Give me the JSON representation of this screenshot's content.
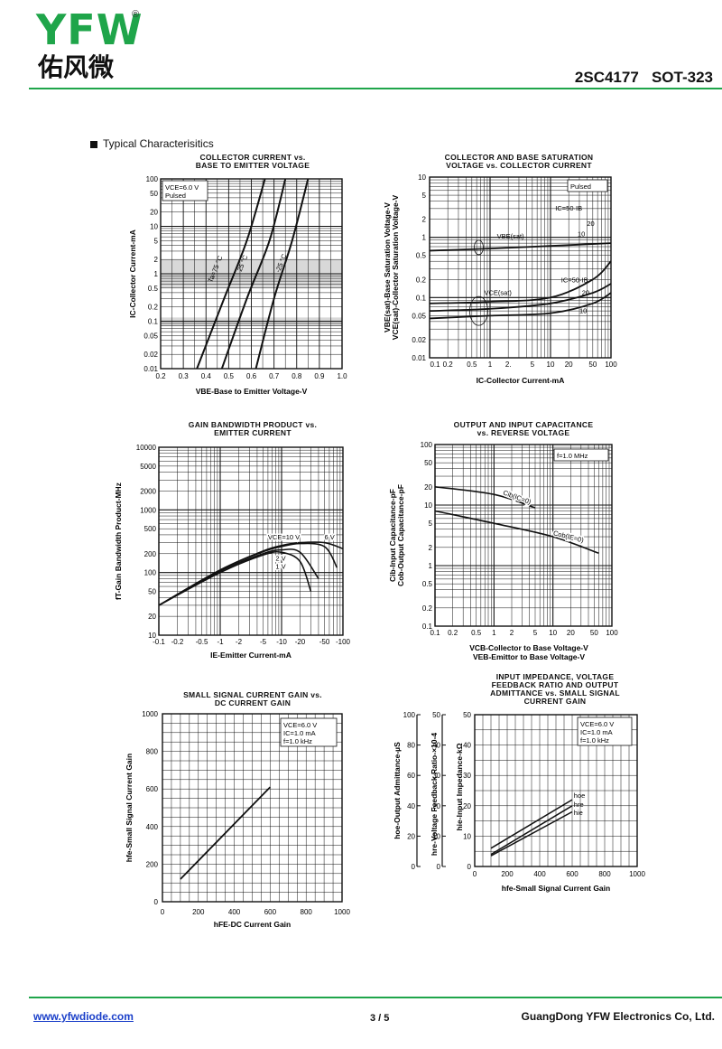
{
  "header": {
    "logo": "YFW",
    "logo_cn": "佑风微",
    "reg": "®",
    "model": "2SC4177   SOT-323"
  },
  "section_title": "Typical Characterisitics",
  "charts": {
    "c1": {
      "title": "COLLECTOR CURRENT vs.\nBASE TO EMITTER VOLTAGE",
      "xlabel": "VBE-Base to Emitter Voltage-V",
      "ylabel": "IC-Collector Current-mA",
      "xticks": [
        "0.2",
        "0.3",
        "0.4",
        "0.5",
        "0.6",
        "0.7",
        "0.8",
        "0.9",
        "1.0"
      ],
      "yticks": [
        "100",
        "50",
        "20",
        "10",
        "5",
        "2",
        "1",
        "0.5",
        "0.2",
        "0.1",
        "0.05",
        "0.02",
        "0.01"
      ],
      "ann": [
        "VCE=6.0 V",
        "Pulsed"
      ],
      "curve_labels": [
        "Ta=75 °C",
        "25 °C",
        "-25 °C"
      ]
    },
    "c2": {
      "title": "COLLECTOR AND BASE SATURATION\nVOLTAGE vs. COLLECTOR CURRENT",
      "xlabel": "IC-Collector Current-mA",
      "ylabel": "VBE(sat)-Base Saturation Voltage-V\nVCE(sat)-Collector Saturation Voltage-V",
      "xticks": [
        "0.1",
        "0.2",
        "0.5",
        "1",
        "2.",
        "5",
        "10",
        "20",
        "50",
        "100"
      ],
      "yticks": [
        "10",
        "5",
        "2",
        "1",
        "0.5",
        "0.2",
        "0.1",
        "0.05",
        "0.02",
        "0.01"
      ],
      "ann": [
        "Pulsed"
      ],
      "labels": [
        "IC=50·IB",
        "20",
        "10",
        "VBE(sat)",
        "IC=50·IB",
        "20",
        "10",
        "VCE(sat)"
      ]
    },
    "c3": {
      "title": "GAIN BANDWIDTH PRODUCT vs.\nEMITTER CURRENT",
      "xlabel": "IE-Emitter Current-mA",
      "ylabel": "fT-Gain Bandwidth Product-MHz",
      "xticks": [
        "-0.1",
        "-0.2",
        "-0.5",
        "-1",
        "-2",
        "-5",
        "-10",
        "-20",
        "-50",
        "-100"
      ],
      "yticks": [
        "10000",
        "5000",
        "2000",
        "1000",
        "500",
        "200",
        "100",
        "50",
        "20",
        "10"
      ],
      "labels": [
        "VCE=10 V",
        "6 V",
        "2 V",
        "1 V"
      ]
    },
    "c4": {
      "title": "OUTPUT AND INPUT CAPACITANCE\nvs. REVERSE VOLTAGE",
      "xlabel": "VCB-Collector to Base Voltage-V\nVEB-Emittor to Base Voltage-V",
      "ylabel": "Cib-Input Capacitance-pF\nCob-Output Capacitance-pF",
      "xticks": [
        "0.1",
        "0.2",
        "0.5",
        "1",
        "2",
        "5",
        "10",
        "20",
        "50",
        "100"
      ],
      "yticks": [
        "100",
        "50",
        "20",
        "10",
        "5",
        "2",
        "1",
        "0.5",
        "0.2",
        "0.1"
      ],
      "ann": [
        "f=1.0 MHz"
      ],
      "labels": [
        "Cib(IC=0)",
        "Cob(IE=0)"
      ]
    },
    "c5": {
      "title": "SMALL SIGNAL CURRENT GAIN vs.\nDC CURRENT GAIN",
      "xlabel": "hFE-DC Current Gain",
      "ylabel": "hfe-Small Signal Current Gain",
      "xticks": [
        "0",
        "200",
        "400",
        "600",
        "800",
        "1000"
      ],
      "yticks": [
        "1000",
        "800",
        "600",
        "400",
        "200",
        "0"
      ],
      "ann": [
        "VCE=6.0 V",
        "IC=1.0 mA",
        "f=1.0 kHz"
      ]
    },
    "c6": {
      "title": "INPUT IMPEDANCE, VOLTAGE\nFEEDBACK RATIO AND OUTPUT\nADMITTANCE vs. SMALL SIGNAL\nCURRENT GAIN",
      "xlabel": "hfe-Small Signal Current Gain",
      "ylabels": [
        "hoe-Output Admittance-µS",
        "hre-Voltage Feedback Ratio-×10-4",
        "hie-Input Impedance-kΩ"
      ],
      "yticks_a": [
        "100",
        "80",
        "60",
        "40",
        "20",
        "0"
      ],
      "yticks_b": [
        "50",
        "40",
        "30",
        "20",
        "10",
        "0"
      ],
      "yticks_c": [
        "50",
        "40",
        "30",
        "20",
        "10",
        "0"
      ],
      "xticks": [
        "0",
        "200",
        "400",
        "600",
        "800",
        "1000"
      ],
      "ann": [
        "VCE=6.0 V",
        "IC=1.0 mA",
        "f=1.0 kHz"
      ],
      "labels": [
        "hoe",
        "hre",
        "hie"
      ]
    }
  },
  "chart_data": [
    {
      "type": "line",
      "title": "COLLECTOR CURRENT vs. BASE TO EMITTER VOLTAGE",
      "xlabel": "VBE-Base to Emitter Voltage-V",
      "ylabel": "IC-Collector Current-mA",
      "xlim": [
        0.2,
        1.0
      ],
      "ylim": [
        0.01,
        100
      ],
      "yscale": "log",
      "series": [
        {
          "name": "Ta=75 °C",
          "x": [
            0.36,
            0.48,
            0.58,
            0.66
          ],
          "y": [
            0.01,
            0.3,
            5,
            100
          ]
        },
        {
          "name": "25 °C",
          "x": [
            0.47,
            0.58,
            0.68,
            0.75
          ],
          "y": [
            0.01,
            0.3,
            5,
            100
          ]
        },
        {
          "name": "-25 °C",
          "x": [
            0.62,
            0.7,
            0.78,
            0.85
          ],
          "y": [
            0.01,
            0.3,
            5,
            100
          ]
        }
      ]
    },
    {
      "type": "line",
      "title": "COLLECTOR AND BASE SATURATION VOLTAGE vs. COLLECTOR CURRENT",
      "xlabel": "IC-Collector Current-mA",
      "xlim": [
        0.1,
        100
      ],
      "ylim": [
        0.01,
        10
      ],
      "xscale": "log",
      "yscale": "log",
      "series": [
        {
          "name": "VBE(sat)",
          "x": [
            0.1,
            1,
            10,
            100
          ],
          "y": [
            0.6,
            0.65,
            0.72,
            0.8
          ]
        },
        {
          "name": "VCE(sat) IC=50·IB",
          "x": [
            0.1,
            1,
            10,
            50,
            100
          ],
          "y": [
            0.08,
            0.085,
            0.1,
            0.2,
            0.4
          ]
        },
        {
          "name": "VCE(sat) 20",
          "x": [
            0.1,
            1,
            10,
            50,
            100
          ],
          "y": [
            0.06,
            0.065,
            0.08,
            0.12,
            0.17
          ]
        },
        {
          "name": "VCE(sat) 10",
          "x": [
            0.1,
            1,
            10,
            50,
            100
          ],
          "y": [
            0.045,
            0.05,
            0.055,
            0.08,
            0.12
          ]
        }
      ]
    },
    {
      "type": "line",
      "title": "GAIN BANDWIDTH PRODUCT vs. EMITTER CURRENT",
      "xlabel": "IE-Emitter Current-mA",
      "ylabel": "fT-Gain Bandwidth Product-MHz",
      "xlim": [
        -0.1,
        -100
      ],
      "ylim": [
        10,
        10000
      ],
      "xscale": "log",
      "yscale": "log",
      "series": [
        {
          "name": "VCE=10 V",
          "x": [
            -0.1,
            -1,
            -5,
            -10,
            -20,
            -50,
            -100
          ],
          "y": [
            30,
            110,
            220,
            270,
            300,
            300,
            240
          ]
        },
        {
          "name": "6 V",
          "x": [
            -0.1,
            -1,
            -5,
            -10,
            -20,
            -50,
            -80
          ],
          "y": [
            30,
            110,
            215,
            260,
            290,
            260,
            120
          ]
        },
        {
          "name": "2 V",
          "x": [
            -0.1,
            -1,
            -5,
            -10,
            -20,
            -40
          ],
          "y": [
            30,
            105,
            200,
            230,
            210,
            80
          ]
        },
        {
          "name": "1 V",
          "x": [
            -0.1,
            -1,
            -5,
            -10,
            -20,
            -30
          ],
          "y": [
            30,
            100,
            190,
            210,
            150,
            50
          ]
        }
      ]
    },
    {
      "type": "line",
      "title": "OUTPUT AND INPUT CAPACITANCE vs. REVERSE VOLTAGE",
      "xlim": [
        0.1,
        100
      ],
      "ylim": [
        0.1,
        100
      ],
      "xscale": "log",
      "yscale": "log",
      "series": [
        {
          "name": "Cib(IC=0)",
          "x": [
            0.1,
            1,
            5
          ],
          "y": [
            20,
            15,
            9
          ]
        },
        {
          "name": "Cob(IE=0)",
          "x": [
            0.1,
            1,
            10,
            60
          ],
          "y": [
            8,
            5,
            3,
            1.6
          ]
        }
      ]
    },
    {
      "type": "line",
      "title": "SMALL SIGNAL CURRENT GAIN vs. DC CURRENT GAIN",
      "xlabel": "hFE-DC Current Gain",
      "ylabel": "hfe-Small Signal Current Gain",
      "xlim": [
        0,
        1000
      ],
      "ylim": [
        0,
        1000
      ],
      "series": [
        {
          "name": "",
          "x": [
            100,
            600
          ],
          "y": [
            120,
            610
          ]
        }
      ]
    },
    {
      "type": "line",
      "title": "INPUT IMPEDANCE, VOLTAGE FEEDBACK RATIO AND OUTPUT ADMITTANCE vs. SMALL SIGNAL CURRENT GAIN",
      "xlabel": "hfe-Small Signal Current Gain",
      "xlim": [
        0,
        1000
      ],
      "ylim": [
        0,
        50
      ],
      "series": [
        {
          "name": "hoe",
          "x": [
            100,
            600
          ],
          "y": [
            6,
            22
          ]
        },
        {
          "name": "hre",
          "x": [
            100,
            600
          ],
          "y": [
            4,
            20
          ]
        },
        {
          "name": "hie",
          "x": [
            100,
            600
          ],
          "y": [
            3.5,
            18
          ]
        }
      ]
    }
  ],
  "footer": {
    "link": "www.yfwdiode.com",
    "page": "3 / 5",
    "company": "GuangDong YFW Electronics Co, Ltd."
  }
}
